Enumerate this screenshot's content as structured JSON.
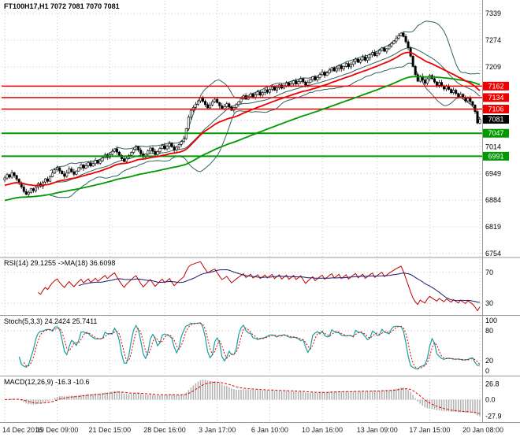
{
  "colors": {
    "background": "#ffffff",
    "grid": "#c6c6c6",
    "candle_up_fill": "#ffffff",
    "candle_down_fill": "#000000",
    "candle_border": "#000000",
    "bollinger": "#316262",
    "ma_fast": "#ee0000",
    "ma_slow": "#009900",
    "resistance": "#ee0000",
    "support": "#009900",
    "rsi_line": "#c00000",
    "rsi_ma_line": "#1a1a6e",
    "stoch_k": "#17a0a0",
    "stoch_d": "#e00000",
    "macd_hist": "#b0b0b0",
    "macd_signal": "#e00000",
    "axis_text": "#000000",
    "time_text": "#222222",
    "separator": "#9a9a9a",
    "current_price_bg": "#000000"
  },
  "chart_data": {
    "type": "candlestick",
    "symbol": "FT100H17",
    "timeframe": "H1",
    "ohlc_header": "FT100H17,H1 7072 7081 7070 7081",
    "last_bar": {
      "open": 7072,
      "high": 7081,
      "low": 7070,
      "close": 7081
    },
    "x_ticks": [
      {
        "bar": 0,
        "label": "14 Dec 2016"
      },
      {
        "bar": 22,
        "label": "19 Dec 09:00"
      },
      {
        "bar": 44,
        "label": "21 Dec 15:00"
      },
      {
        "bar": 67,
        "label": "28 Dec 16:00"
      },
      {
        "bar": 89,
        "label": "3 Jan 17:00"
      },
      {
        "bar": 111,
        "label": "6 Jan 10:00"
      },
      {
        "bar": 133,
        "label": "10 Jan 16:00"
      },
      {
        "bar": 156,
        "label": "13 Jan 09:00"
      },
      {
        "bar": 178,
        "label": "17 Jan 15:00"
      },
      {
        "bar": 199,
        "label": "20 Jan 08:00"
      }
    ],
    "price_panel": {
      "ylim": [
        6746,
        7370
      ],
      "grid_yticks": [
        7339,
        7274,
        7209,
        7144,
        7079,
        7014,
        6949,
        6884,
        6819,
        6754
      ],
      "visible_yticks": [
        7339,
        7274,
        7209,
        7014,
        6949,
        6884,
        6819,
        6754
      ],
      "levels": [
        {
          "price": 7162,
          "color": "#ee0000",
          "type": "resistance"
        },
        {
          "price": 7134,
          "color": "#ee0000",
          "type": "resistance"
        },
        {
          "price": 7106,
          "color": "#ee0000",
          "type": "resistance"
        },
        {
          "price": 7047,
          "color": "#009900",
          "type": "support"
        },
        {
          "price": 6991,
          "color": "#009900",
          "type": "support"
        }
      ],
      "current_price": 7081,
      "closes": [
        6938,
        6946,
        6940,
        6951,
        6944,
        6935,
        6925,
        6916,
        6905,
        6898,
        6903,
        6912,
        6907,
        6916,
        6924,
        6918,
        6928,
        6936,
        6930,
        6941,
        6950,
        6958,
        6963,
        6955,
        6948,
        6942,
        6951,
        6960,
        6953,
        6947,
        6955,
        6963,
        6970,
        6962,
        6968,
        6975,
        6967,
        6973,
        6981,
        6974,
        6980,
        6987,
        6994,
        6988,
        6995,
        7003,
        7009,
        7001,
        6993,
        6985,
        6978,
        6986,
        6993,
        7000,
        7008,
        7014,
        7006,
        6997,
        6989,
        6996,
        7004,
        7011,
        7003,
        6995,
        7002,
        7010,
        7017,
        7009,
        7015,
        7022,
        7014,
        7006,
        7013,
        7020,
        7027,
        7034,
        7058,
        7086,
        7103,
        7110,
        7118,
        7126,
        7133,
        7125,
        7117,
        7109,
        7116,
        7124,
        7130,
        7122,
        7114,
        7106,
        7112,
        7119,
        7111,
        7103,
        7110,
        7117,
        7124,
        7131,
        7138,
        7130,
        7136,
        7143,
        7135,
        7141,
        7148,
        7140,
        7146,
        7153,
        7147,
        7154,
        7160,
        7152,
        7158,
        7165,
        7157,
        7163,
        7170,
        7162,
        7168,
        7175,
        7167,
        7173,
        7180,
        7172,
        7164,
        7171,
        7178,
        7185,
        7177,
        7183,
        7190,
        7196,
        7188,
        7194,
        7201,
        7207,
        7199,
        7205,
        7212,
        7204,
        7210,
        7217,
        7209,
        7215,
        7222,
        7228,
        7220,
        7226,
        7233,
        7225,
        7231,
        7238,
        7244,
        7236,
        7242,
        7249,
        7255,
        7247,
        7253,
        7260,
        7266,
        7272,
        7279,
        7285,
        7291,
        7283,
        7270,
        7255,
        7235,
        7210,
        7190,
        7174,
        7186,
        7177,
        7169,
        7180,
        7188,
        7180,
        7172,
        7164,
        7171,
        7163,
        7155,
        7162,
        7154,
        7146,
        7152,
        7144,
        7136,
        7142,
        7134,
        7126,
        7132,
        7124,
        7116,
        7100,
        7072,
        7081
      ]
    },
    "indicators": {
      "rsi": {
        "label": "RSI(14) 29.1255 ->MA(18) 36.6098",
        "period": 14,
        "ma_period": 18,
        "value": 29.1255,
        "ma_value": 36.6098,
        "yticks": [
          {
            "value": 70,
            "label": "70"
          },
          {
            "value": 30,
            "label": "30"
          }
        ]
      },
      "stoch": {
        "label": "Stoch(5,3,3) 24.2424 25.7411",
        "value": 24.2424,
        "signal": 25.7411,
        "yticks": [
          {
            "value": 100,
            "label": "100"
          },
          {
            "value": 80,
            "label": "80"
          },
          {
            "value": 20,
            "label": "20"
          },
          {
            "value": 0,
            "label": "0"
          }
        ]
      },
      "macd": {
        "label": "MACD(12,26,9) -16.3 -10.6",
        "value": -16.3,
        "signal": -10.6,
        "yticks": [
          {
            "value": 26.8,
            "label": "26.8"
          },
          {
            "value": 0,
            "label": "0.0"
          },
          {
            "value": -27.9,
            "label": "-27.9"
          }
        ]
      }
    }
  }
}
